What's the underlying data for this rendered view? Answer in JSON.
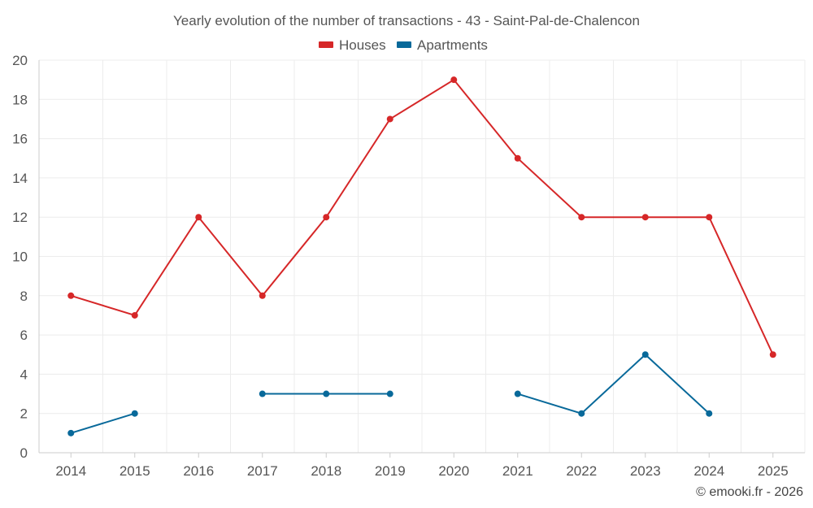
{
  "chart_data": {
    "type": "line",
    "title": "Yearly evolution of the number of transactions - 43 - Saint-Pal-de-Chalencon",
    "categories": [
      "2014",
      "2015",
      "2016",
      "2017",
      "2018",
      "2019",
      "2020",
      "2021",
      "2022",
      "2023",
      "2024",
      "2025"
    ],
    "ylim": [
      0,
      20
    ],
    "yticks": [
      0,
      2,
      4,
      6,
      8,
      10,
      12,
      14,
      16,
      18,
      20
    ],
    "grid": true,
    "legend_position": "top-center",
    "series": [
      {
        "name": "Houses",
        "color": "#d62728",
        "values": [
          8,
          7,
          12,
          8,
          12,
          17,
          19,
          15,
          12,
          12,
          12,
          5
        ]
      },
      {
        "name": "Apartments",
        "color": "#08699a",
        "values": [
          1,
          2,
          null,
          3,
          3,
          3,
          null,
          3,
          2,
          5,
          2,
          null
        ]
      }
    ]
  },
  "credit": "© emooki.fr - 2026"
}
